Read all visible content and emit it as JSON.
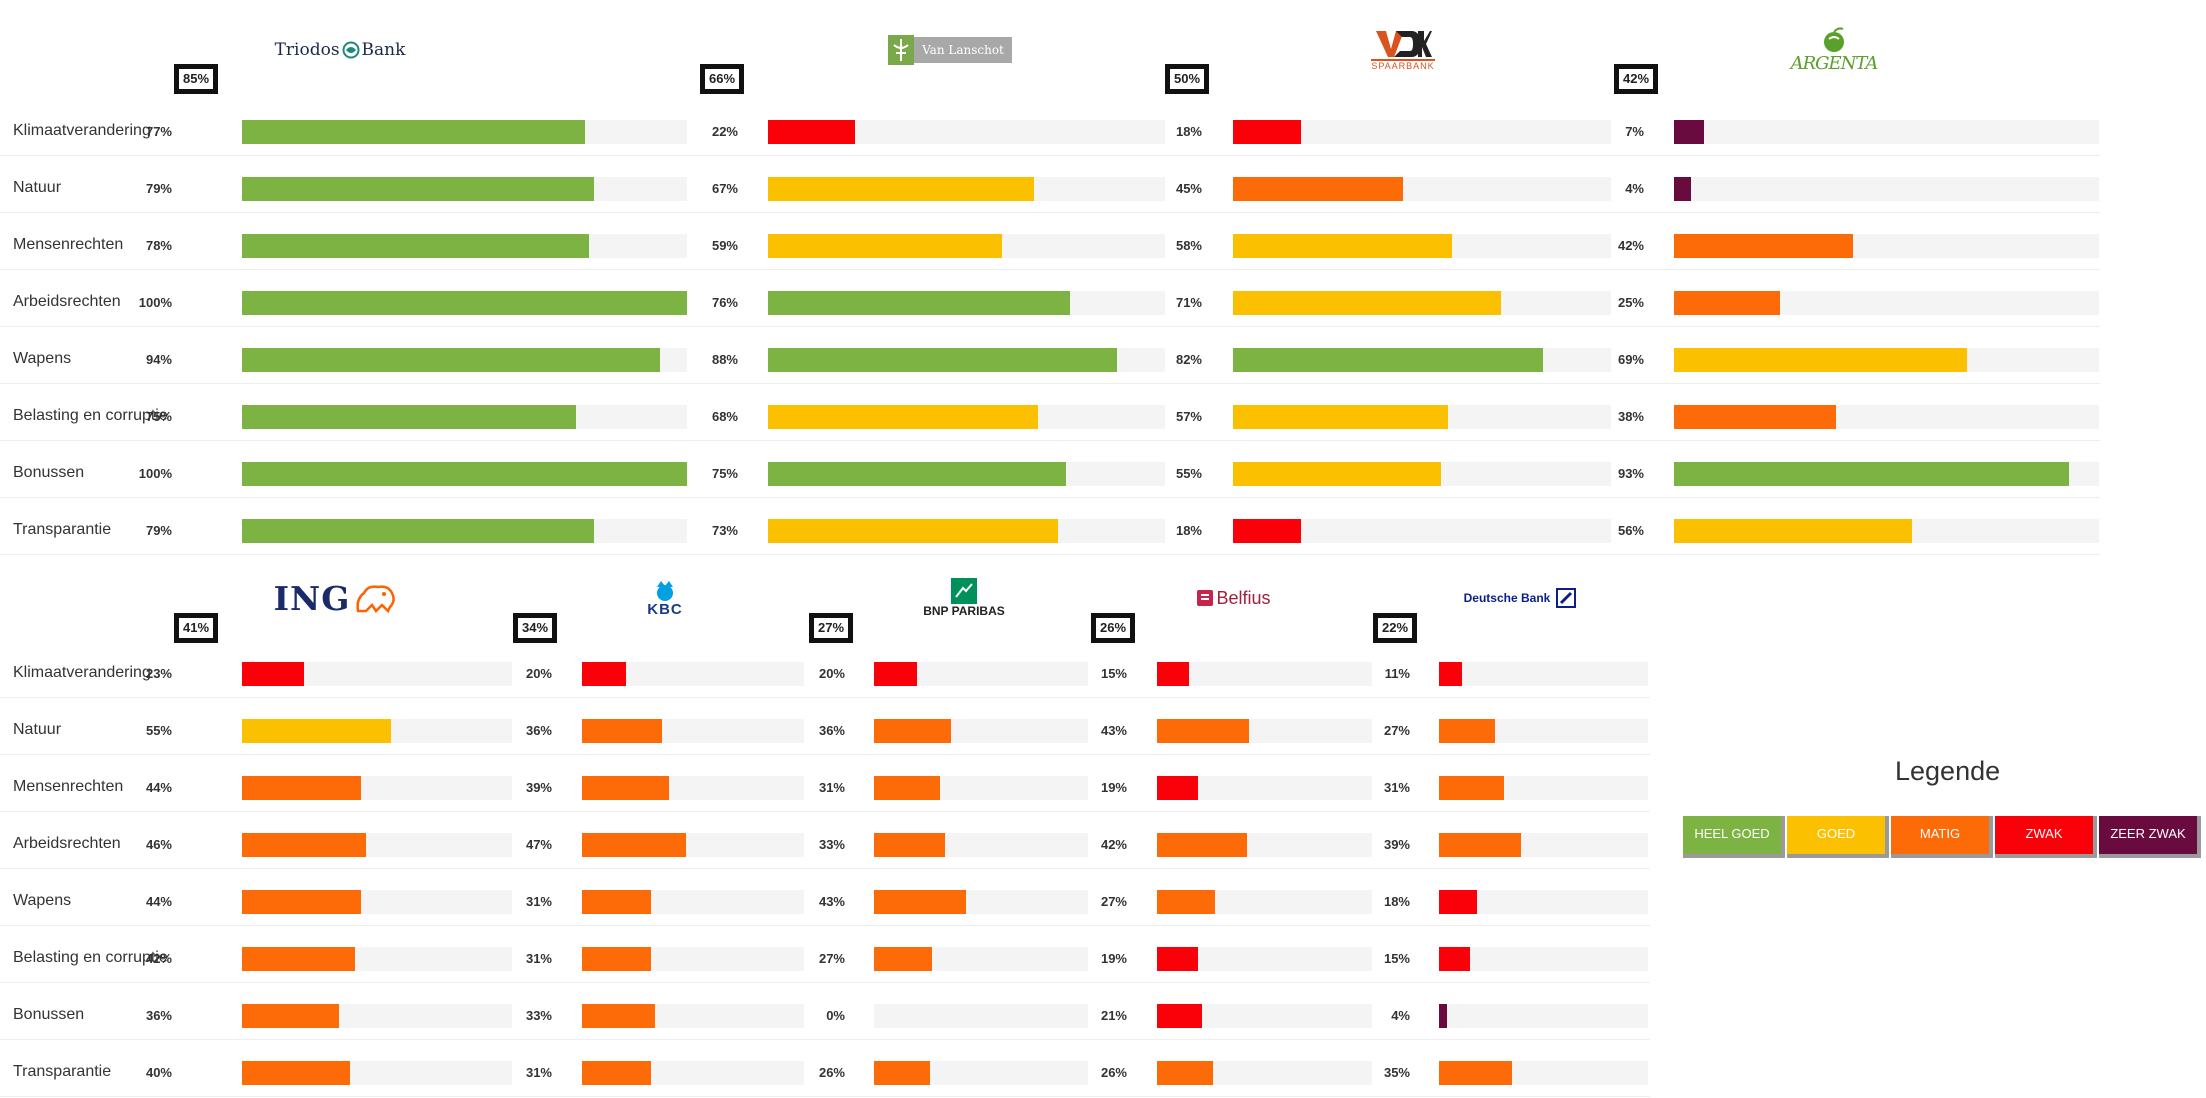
{
  "chart_data": {
    "type": "bar",
    "title": "",
    "xlabel": "",
    "ylabel": "",
    "xlim": [
      0,
      100
    ],
    "unit": "%",
    "categories": [
      "Klimaatverandering",
      "Natuur",
      "Mensenrechten",
      "Arbeidsrechten",
      "Wapens",
      "Belasting en corruptie",
      "Bonussen",
      "Transparantie"
    ],
    "panels": [
      {
        "group": "top",
        "series": [
          {
            "name": "Triodos Bank",
            "overall": 85,
            "values": [
              77,
              79,
              78,
              100,
              94,
              75,
              100,
              79
            ]
          },
          {
            "name": "Van Lanschot",
            "overall": 66,
            "values": [
              22,
              67,
              59,
              76,
              88,
              68,
              75,
              73
            ]
          },
          {
            "name": "SPAARBANK",
            "overall": 50,
            "values": [
              18,
              45,
              58,
              71,
              82,
              57,
              55,
              18
            ]
          },
          {
            "name": "ARGENTA",
            "overall": 42,
            "values": [
              7,
              4,
              42,
              25,
              69,
              38,
              93,
              56
            ]
          }
        ]
      },
      {
        "group": "bottom",
        "series": [
          {
            "name": "ING",
            "overall": 41,
            "values": [
              23,
              55,
              44,
              46,
              44,
              42,
              36,
              40
            ]
          },
          {
            "name": "KBC",
            "overall": 34,
            "values": [
              20,
              36,
              39,
              47,
              31,
              31,
              33,
              31
            ]
          },
          {
            "name": "BNP PARIBAS",
            "overall": 27,
            "values": [
              20,
              36,
              31,
              33,
              43,
              27,
              0,
              26
            ]
          },
          {
            "name": "Belfius",
            "overall": 26,
            "values": [
              15,
              43,
              19,
              42,
              27,
              19,
              21,
              26
            ]
          },
          {
            "name": "Deutsche Bank",
            "overall": 22,
            "values": [
              11,
              27,
              31,
              39,
              18,
              15,
              4,
              35
            ]
          }
        ]
      }
    ],
    "legend": {
      "title": "Legende",
      "placement": "right",
      "items": [
        {
          "label": "HEEL GOED",
          "color": "#7cb342"
        },
        {
          "label": "GOED",
          "color": "#fbc100"
        },
        {
          "label": "MATIG",
          "color": "#fd6a08"
        },
        {
          "label": "ZWAK",
          "color": "#fa0109"
        },
        {
          "label": "ZEER ZWAK",
          "color": "#6a0b3f"
        }
      ]
    },
    "color_rules": [
      {
        "min": 75,
        "color": "#7cb342"
      },
      {
        "min": 50,
        "color": "#fbc100"
      },
      {
        "min": 25,
        "color": "#fd6a08"
      },
      {
        "min": 10,
        "color": "#fa0109"
      },
      {
        "min": 0,
        "color": "#6a0b3f"
      }
    ],
    "icons": {
      "Triodos Bank": "triodos-bank-logo-icon",
      "Van Lanschot": "van-lanschot-logo-icon",
      "SPAARBANK": "vdk-spaarbank-logo-icon",
      "ARGENTA": "argenta-logo-icon",
      "ING": "ing-lion-logo-icon",
      "KBC": "kbc-logo-icon",
      "BNP PARIBAS": "bnp-paribas-logo-icon",
      "Belfius": "belfius-logo-icon",
      "Deutsche Bank": "deutsche-bank-logo-icon"
    }
  }
}
